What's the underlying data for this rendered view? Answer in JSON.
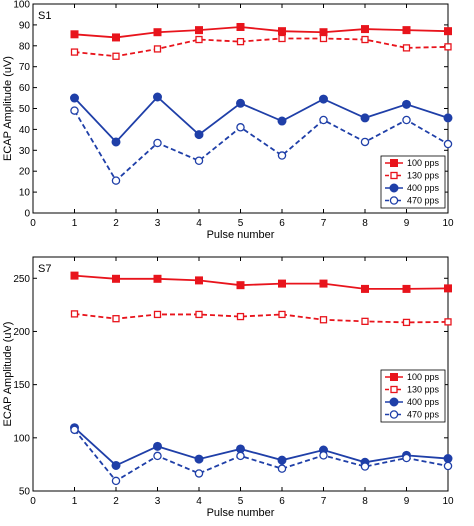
{
  "chart_data": [
    {
      "type": "line",
      "panel_label": "S1",
      "xlabel": "Pulse number",
      "ylabel": "ECAP Amplitude (uV)",
      "xlim": [
        0,
        10
      ],
      "ylim": [
        0,
        100
      ],
      "x_ticks": [
        0,
        1,
        2,
        3,
        4,
        5,
        6,
        7,
        8,
        9,
        10
      ],
      "y_ticks": [
        0,
        10,
        20,
        30,
        40,
        50,
        60,
        70,
        80,
        90,
        100
      ],
      "x": [
        1,
        2,
        3,
        4,
        5,
        6,
        7,
        8,
        9,
        10
      ],
      "legend_position": "bottom-right",
      "series": [
        {
          "name": "100 pps",
          "color": "#e8141c",
          "dashed": false,
          "marker": "filled-square",
          "values": [
            85.5,
            84,
            86.5,
            87.5,
            89,
            87,
            86.5,
            88,
            87.5,
            87
          ]
        },
        {
          "name": "130 pps",
          "color": "#e8141c",
          "dashed": true,
          "marker": "open-square",
          "values": [
            77,
            75,
            78.5,
            83,
            82,
            83.5,
            83.5,
            83,
            79,
            79.5
          ]
        },
        {
          "name": "400 pps",
          "color": "#1f3fa8",
          "dashed": false,
          "marker": "filled-circle",
          "values": [
            55,
            34,
            55.5,
            37.5,
            52.5,
            44,
            54.5,
            45.5,
            52,
            45.5
          ]
        },
        {
          "name": "470 pps",
          "color": "#1f3fa8",
          "dashed": true,
          "marker": "open-circle",
          "values": [
            49,
            15.5,
            33.5,
            25,
            41,
            27.5,
            44.5,
            34,
            44.5,
            33
          ]
        }
      ]
    },
    {
      "type": "line",
      "panel_label": "S7",
      "xlabel": "Pulse number",
      "ylabel": "ECAP Amplitude (uV)",
      "xlim": [
        0,
        10
      ],
      "ylim": [
        50,
        270
      ],
      "x_ticks": [
        0,
        1,
        2,
        3,
        4,
        5,
        6,
        7,
        8,
        9,
        10
      ],
      "y_ticks": [
        50,
        100,
        150,
        200,
        250
      ],
      "x": [
        1,
        2,
        3,
        4,
        5,
        6,
        7,
        8,
        9,
        10
      ],
      "legend_position": "right",
      "series": [
        {
          "name": "100 pps",
          "color": "#e8141c",
          "dashed": false,
          "marker": "filled-square",
          "values": [
            252.5,
            249.5,
            249.5,
            248,
            243.5,
            245,
            245,
            240,
            240,
            240.5
          ]
        },
        {
          "name": "130 pps",
          "color": "#e8141c",
          "dashed": true,
          "marker": "open-square",
          "values": [
            216.5,
            212,
            216,
            216,
            214,
            216,
            211,
            209.5,
            208.5,
            209
          ]
        },
        {
          "name": "400 pps",
          "color": "#1f3fa8",
          "dashed": false,
          "marker": "filled-circle",
          "values": [
            109.5,
            74,
            92,
            80,
            89.5,
            79,
            88.5,
            77,
            83.5,
            80.5
          ]
        },
        {
          "name": "470 pps",
          "color": "#1f3fa8",
          "dashed": true,
          "marker": "open-circle",
          "values": [
            107.5,
            59.5,
            83,
            66.5,
            83,
            71,
            83.5,
            73,
            81,
            73.5
          ]
        }
      ]
    }
  ]
}
